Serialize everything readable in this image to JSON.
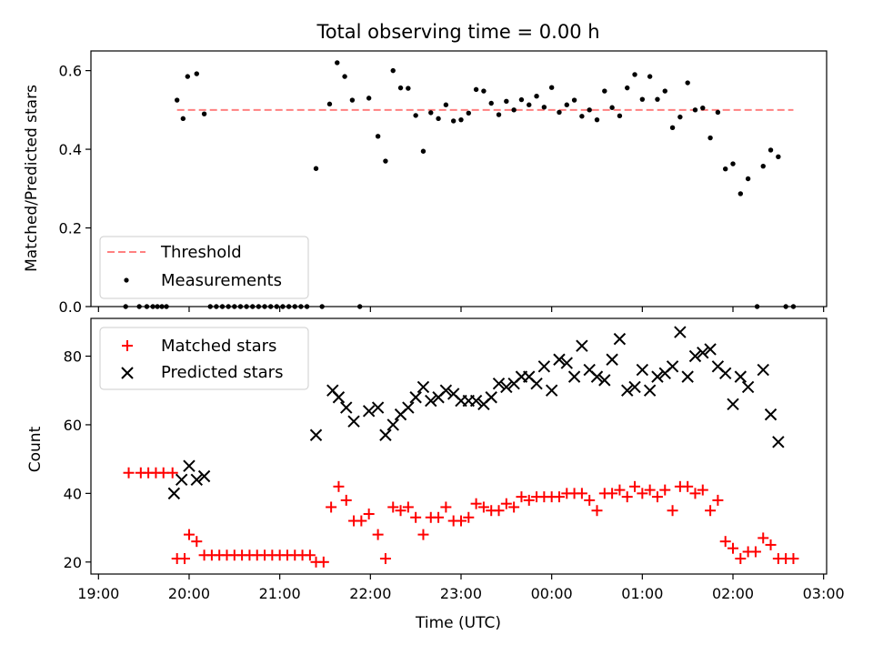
{
  "figure": {
    "title": "Total observing time = 0.00 h",
    "xlabel": "Time (UTC)"
  },
  "chart_data": [
    {
      "type": "scatter",
      "panel": "top",
      "ylabel": "Matched/Predicted stars",
      "ylim": [
        0,
        0.65
      ],
      "yticks": [
        0.0,
        0.2,
        0.4,
        0.6
      ],
      "ytick_labels": [
        "0.0",
        "0.2",
        "0.4",
        "0.6"
      ],
      "legend_placement": "lower-left",
      "threshold": {
        "name": "Threshold",
        "value": 0.5,
        "x_start": "19:52",
        "x_end": "02:40",
        "color": "#ff8080"
      },
      "series": [
        {
          "name": "Measurements",
          "color": "#000000",
          "points": [
            [
              "19:18",
              0
            ],
            [
              "19:27",
              0
            ],
            [
              "19:32",
              0
            ],
            [
              "19:36",
              0
            ],
            [
              "19:39",
              0
            ],
            [
              "19:42",
              0
            ],
            [
              "19:45",
              0
            ],
            [
              "19:52",
              0.525
            ],
            [
              "19:56",
              0.478
            ],
            [
              "19:59",
              0.585
            ],
            [
              "20:05",
              0.592
            ],
            [
              "20:10",
              0.49
            ],
            [
              "20:14",
              0
            ],
            [
              "20:18",
              0
            ],
            [
              "20:22",
              0
            ],
            [
              "20:26",
              0
            ],
            [
              "20:30",
              0
            ],
            [
              "20:34",
              0
            ],
            [
              "20:38",
              0
            ],
            [
              "20:42",
              0
            ],
            [
              "20:46",
              0
            ],
            [
              "20:50",
              0
            ],
            [
              "20:54",
              0
            ],
            [
              "20:58",
              0
            ],
            [
              "21:02",
              0
            ],
            [
              "21:06",
              0
            ],
            [
              "21:10",
              0
            ],
            [
              "21:14",
              0
            ],
            [
              "21:18",
              0
            ],
            [
              "21:24",
              0.351
            ],
            [
              "21:28",
              0
            ],
            [
              "21:33",
              0.515
            ],
            [
              "21:38",
              0.62
            ],
            [
              "21:43",
              0.585
            ],
            [
              "21:48",
              0.525
            ],
            [
              "21:53",
              0
            ],
            [
              "21:59",
              0.53
            ],
            [
              "22:05",
              0.433
            ],
            [
              "22:10",
              0.37
            ],
            [
              "22:15",
              0.6
            ],
            [
              "22:20",
              0.556
            ],
            [
              "22:25",
              0.555
            ],
            [
              "22:30",
              0.486
            ],
            [
              "22:35",
              0.395
            ],
            [
              "22:40",
              0.493
            ],
            [
              "22:45",
              0.478
            ],
            [
              "22:50",
              0.513
            ],
            [
              "22:55",
              0.472
            ],
            [
              "23:00",
              0.475
            ],
            [
              "23:05",
              0.492
            ],
            [
              "23:10",
              0.552
            ],
            [
              "23:15",
              0.548
            ],
            [
              "23:20",
              0.517
            ],
            [
              "23:25",
              0.488
            ],
            [
              "23:30",
              0.522
            ],
            [
              "23:35",
              0.5
            ],
            [
              "23:40",
              0.526
            ],
            [
              "23:45",
              0.513
            ],
            [
              "23:50",
              0.535
            ],
            [
              "23:55",
              0.507
            ],
            [
              "00:00",
              0.557
            ],
            [
              "00:05",
              0.494
            ],
            [
              "00:10",
              0.513
            ],
            [
              "00:15",
              0.525
            ],
            [
              "00:20",
              0.484
            ],
            [
              "00:25",
              0.5
            ],
            [
              "00:30",
              0.475
            ],
            [
              "00:35",
              0.548
            ],
            [
              "00:40",
              0.506
            ],
            [
              "00:45",
              0.485
            ],
            [
              "00:50",
              0.556
            ],
            [
              "00:55",
              0.59
            ],
            [
              "01:00",
              0.527
            ],
            [
              "01:05",
              0.585
            ],
            [
              "01:10",
              0.527
            ],
            [
              "01:15",
              0.548
            ],
            [
              "01:20",
              0.455
            ],
            [
              "01:25",
              0.482
            ],
            [
              "01:30",
              0.569
            ],
            [
              "01:35",
              0.5
            ],
            [
              "01:40",
              0.505
            ],
            [
              "01:45",
              0.429
            ],
            [
              "01:50",
              0.494
            ],
            [
              "01:55",
              0.35
            ],
            [
              "02:00",
              0.363
            ],
            [
              "02:05",
              0.287
            ],
            [
              "02:10",
              0.325
            ],
            [
              "02:16",
              0
            ],
            [
              "02:20",
              0.357
            ],
            [
              "02:25",
              0.398
            ],
            [
              "02:30",
              0.381
            ],
            [
              "02:35",
              0
            ],
            [
              "02:40",
              0
            ]
          ]
        }
      ]
    },
    {
      "type": "scatter",
      "panel": "bottom",
      "ylabel": "Count",
      "ylim": [
        16.5,
        91
      ],
      "yticks": [
        20,
        40,
        60,
        80
      ],
      "ytick_labels": [
        "20",
        "40",
        "60",
        "80"
      ],
      "legend_placement": "upper-left",
      "series": [
        {
          "name": "Matched stars",
          "marker": "plus",
          "color": "#ff0000",
          "points": [
            [
              "19:20",
              46
            ],
            [
              "19:28",
              46
            ],
            [
              "19:33",
              46
            ],
            [
              "19:38",
              46
            ],
            [
              "19:43",
              46
            ],
            [
              "19:49",
              46
            ],
            [
              "19:52",
              21
            ],
            [
              "19:57",
              21
            ],
            [
              "20:00",
              28
            ],
            [
              "20:05",
              26
            ],
            [
              "20:10",
              22
            ],
            [
              "20:15",
              22
            ],
            [
              "20:20",
              22
            ],
            [
              "20:25",
              22
            ],
            [
              "20:30",
              22
            ],
            [
              "20:35",
              22
            ],
            [
              "20:40",
              22
            ],
            [
              "20:45",
              22
            ],
            [
              "20:50",
              22
            ],
            [
              "20:55",
              22
            ],
            [
              "21:00",
              22
            ],
            [
              "21:05",
              22
            ],
            [
              "21:10",
              22
            ],
            [
              "21:15",
              22
            ],
            [
              "21:20",
              22
            ],
            [
              "21:24",
              20
            ],
            [
              "21:29",
              20
            ],
            [
              "21:34",
              36
            ],
            [
              "21:39",
              42
            ],
            [
              "21:44",
              38
            ],
            [
              "21:49",
              32
            ],
            [
              "21:54",
              32
            ],
            [
              "21:59",
              34
            ],
            [
              "22:05",
              28
            ],
            [
              "22:10",
              21
            ],
            [
              "22:15",
              36
            ],
            [
              "22:20",
              35
            ],
            [
              "22:25",
              36
            ],
            [
              "22:30",
              33
            ],
            [
              "22:35",
              28
            ],
            [
              "22:40",
              33
            ],
            [
              "22:45",
              33
            ],
            [
              "22:50",
              36
            ],
            [
              "22:55",
              32
            ],
            [
              "23:00",
              32
            ],
            [
              "23:05",
              33
            ],
            [
              "23:10",
              37
            ],
            [
              "23:15",
              36
            ],
            [
              "23:20",
              35
            ],
            [
              "23:25",
              35
            ],
            [
              "23:30",
              37
            ],
            [
              "23:35",
              36
            ],
            [
              "23:40",
              39
            ],
            [
              "23:45",
              38
            ],
            [
              "23:50",
              39
            ],
            [
              "23:55",
              39
            ],
            [
              "00:00",
              39
            ],
            [
              "00:05",
              39
            ],
            [
              "00:10",
              40
            ],
            [
              "00:15",
              40
            ],
            [
              "00:20",
              40
            ],
            [
              "00:25",
              38
            ],
            [
              "00:30",
              35
            ],
            [
              "00:35",
              40
            ],
            [
              "00:40",
              40
            ],
            [
              "00:45",
              41
            ],
            [
              "00:50",
              39
            ],
            [
              "00:55",
              42
            ],
            [
              "01:00",
              40
            ],
            [
              "01:05",
              41
            ],
            [
              "01:10",
              39
            ],
            [
              "01:15",
              41
            ],
            [
              "01:20",
              35
            ],
            [
              "01:25",
              42
            ],
            [
              "01:30",
              42
            ],
            [
              "01:35",
              40
            ],
            [
              "01:40",
              41
            ],
            [
              "01:45",
              35
            ],
            [
              "01:50",
              38
            ],
            [
              "01:55",
              26
            ],
            [
              "02:00",
              24
            ],
            [
              "02:05",
              21
            ],
            [
              "02:10",
              23
            ],
            [
              "02:15",
              23
            ],
            [
              "02:20",
              27
            ],
            [
              "02:25",
              25
            ],
            [
              "02:30",
              21
            ],
            [
              "02:35",
              21
            ],
            [
              "02:40",
              21
            ]
          ]
        },
        {
          "name": "Predicted stars",
          "marker": "x",
          "color": "#000000",
          "points": [
            [
              "19:50",
              40
            ],
            [
              "19:55",
              44
            ],
            [
              "20:00",
              48
            ],
            [
              "20:05",
              44
            ],
            [
              "20:10",
              45
            ],
            [
              "21:24",
              57
            ],
            [
              "21:35",
              70
            ],
            [
              "21:39",
              68
            ],
            [
              "21:44",
              65
            ],
            [
              "21:49",
              61
            ],
            [
              "21:59",
              64
            ],
            [
              "22:05",
              65
            ],
            [
              "22:10",
              57
            ],
            [
              "22:15",
              60
            ],
            [
              "22:20",
              63
            ],
            [
              "22:25",
              65
            ],
            [
              "22:30",
              68
            ],
            [
              "22:35",
              71
            ],
            [
              "22:40",
              67
            ],
            [
              "22:45",
              68
            ],
            [
              "22:50",
              70
            ],
            [
              "22:55",
              69
            ],
            [
              "23:00",
              67
            ],
            [
              "23:05",
              67
            ],
            [
              "23:10",
              67
            ],
            [
              "23:15",
              66
            ],
            [
              "23:20",
              68
            ],
            [
              "23:25",
              72
            ],
            [
              "23:30",
              71
            ],
            [
              "23:35",
              72
            ],
            [
              "23:40",
              74
            ],
            [
              "23:45",
              74
            ],
            [
              "23:50",
              72
            ],
            [
              "23:55",
              77
            ],
            [
              "00:00",
              70
            ],
            [
              "00:05",
              79
            ],
            [
              "00:10",
              78
            ],
            [
              "00:15",
              74
            ],
            [
              "00:20",
              83
            ],
            [
              "00:25",
              76
            ],
            [
              "00:30",
              74
            ],
            [
              "00:35",
              73
            ],
            [
              "00:40",
              79
            ],
            [
              "00:45",
              85
            ],
            [
              "00:50",
              70
            ],
            [
              "00:55",
              71
            ],
            [
              "01:00",
              76
            ],
            [
              "01:05",
              70
            ],
            [
              "01:10",
              74
            ],
            [
              "01:15",
              75
            ],
            [
              "01:20",
              77
            ],
            [
              "01:25",
              87
            ],
            [
              "01:30",
              74
            ],
            [
              "01:35",
              80
            ],
            [
              "01:40",
              81
            ],
            [
              "01:45",
              82
            ],
            [
              "01:50",
              77
            ],
            [
              "01:55",
              75
            ],
            [
              "02:00",
              66
            ],
            [
              "02:05",
              74
            ],
            [
              "02:10",
              71
            ],
            [
              "02:20",
              76
            ],
            [
              "02:25",
              63
            ],
            [
              "02:30",
              55
            ]
          ]
        }
      ]
    }
  ],
  "xaxis": {
    "xlim": [
      "18:55",
      "03:02"
    ],
    "ticks": [
      "19:00",
      "20:00",
      "21:00",
      "22:00",
      "23:00",
      "00:00",
      "01:00",
      "02:00",
      "03:00"
    ]
  }
}
